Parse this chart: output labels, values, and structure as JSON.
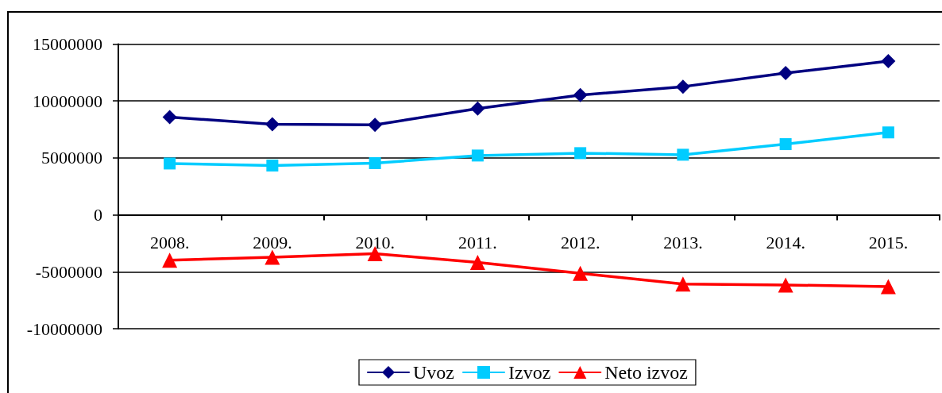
{
  "chart_data": {
    "type": "line",
    "categories": [
      "2008.",
      "2009.",
      "2010.",
      "2011.",
      "2012.",
      "2013.",
      "2014.",
      "2015."
    ],
    "series": [
      {
        "name": "Uvoz",
        "color": "#000080",
        "marker": "diamond",
        "values": [
          8580000,
          7960000,
          7910000,
          9330000,
          10520000,
          11260000,
          12450000,
          13500000
        ]
      },
      {
        "name": "Izvoz",
        "color": "#00ccff",
        "marker": "square",
        "values": [
          4510000,
          4330000,
          4540000,
          5210000,
          5420000,
          5280000,
          6210000,
          7240000
        ]
      },
      {
        "name": "Neto izvoz",
        "color": "#ff0000",
        "marker": "triangle",
        "values": [
          -3980000,
          -3720000,
          -3410000,
          -4170000,
          -5130000,
          -6070000,
          -6160000,
          -6300000
        ]
      }
    ],
    "ylim": [
      -10000000,
      15000000
    ],
    "yticks": [
      -10000000,
      -5000000,
      0,
      5000000,
      10000000,
      15000000
    ],
    "grid": "y",
    "legend": "bottom"
  }
}
